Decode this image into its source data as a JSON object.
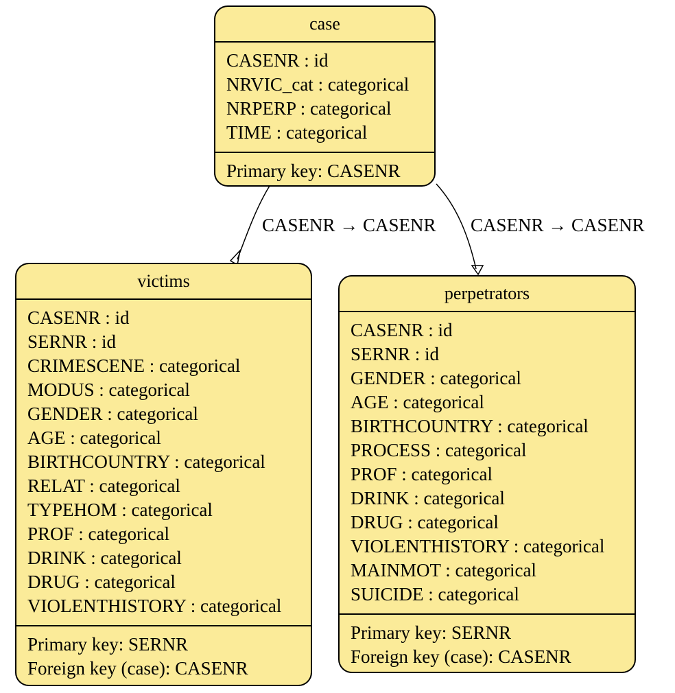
{
  "tables": {
    "case": {
      "name": "case",
      "fields": [
        "CASENR : id",
        "NRVIC_cat : categorical",
        "NRPERP : categorical",
        "TIME : categorical"
      ],
      "keys": [
        "Primary key: CASENR"
      ]
    },
    "victims": {
      "name": "victims",
      "fields": [
        "CASENR : id",
        "SERNR : id",
        "CRIMESCENE : categorical",
        "MODUS : categorical",
        "GENDER : categorical",
        "AGE : categorical",
        "BIRTHCOUNTRY : categorical",
        "RELAT : categorical",
        "TYPEHOM : categorical",
        "PROF : categorical",
        "DRINK : categorical",
        "DRUG : categorical",
        "VIOLENTHISTORY : categorical"
      ],
      "keys": [
        "Primary key: SERNR",
        "Foreign key (case): CASENR"
      ]
    },
    "perpetrators": {
      "name": "perpetrators",
      "fields": [
        "CASENR : id",
        "SERNR : id",
        "GENDER : categorical",
        "AGE : categorical",
        "BIRTHCOUNTRY : categorical",
        "PROCESS : categorical",
        "PROF : categorical",
        "DRINK : categorical",
        "DRUG : categorical",
        "VIOLENTHISTORY : categorical",
        "MAINMOT : categorical",
        "SUICIDE : categorical"
      ],
      "keys": [
        "Primary key: SERNR",
        "Foreign key (case): CASENR"
      ]
    }
  },
  "edges": [
    {
      "from": "case",
      "to": "victims",
      "label": "CASENR → CASENR"
    },
    {
      "from": "case",
      "to": "perpetrators",
      "label": "CASENR → CASENR"
    }
  ],
  "colors": {
    "table_fill": "#fbeb99",
    "stroke": "#000000"
  }
}
